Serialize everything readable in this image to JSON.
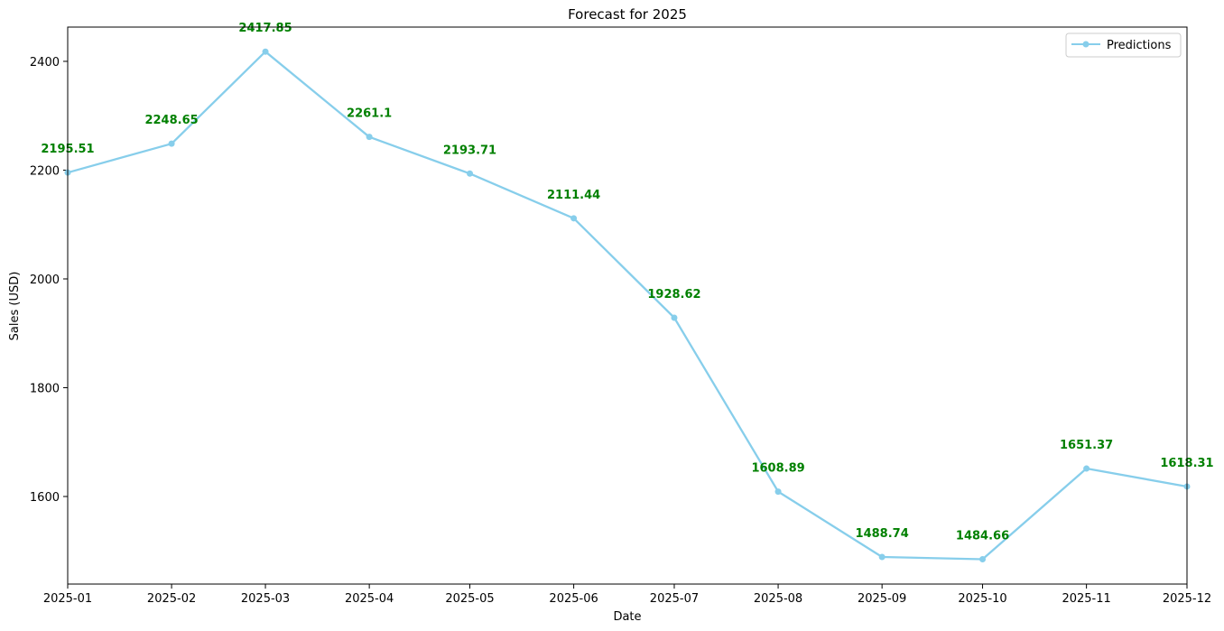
{
  "chart_data": {
    "type": "line",
    "title": "Forecast for 2025",
    "xlabel": "Date",
    "ylabel": "Sales (USD)",
    "x": [
      "2025-01",
      "2025-02",
      "2025-03",
      "2025-04",
      "2025-05",
      "2025-06",
      "2025-07",
      "2025-08",
      "2025-09",
      "2025-10",
      "2025-11",
      "2025-12"
    ],
    "x_dates": [
      "2025-01-01",
      "2025-02-01",
      "2025-03-01",
      "2025-04-01",
      "2025-05-01",
      "2025-06-01",
      "2025-07-01",
      "2025-08-01",
      "2025-09-01",
      "2025-10-01",
      "2025-11-01",
      "2025-12-01"
    ],
    "series": [
      {
        "name": "Predictions",
        "values": [
          2195.51,
          2248.65,
          2417.85,
          2261.1,
          2193.71,
          2111.44,
          1928.62,
          1608.89,
          1488.74,
          1484.66,
          1651.37,
          1618.31
        ],
        "labels": [
          "2195.51",
          "2248.65",
          "2417.85",
          "2261.1",
          "2193.71",
          "2111.44",
          "1928.62",
          "1608.89",
          "1488.74",
          "1484.66",
          "1651.37",
          "1618.31"
        ]
      }
    ],
    "ylim": [
      1439,
      2463
    ],
    "yticks": [
      "1600",
      "1800",
      "2000",
      "2200",
      "2400"
    ],
    "grid": false,
    "legend_position": "top-right",
    "colors": {
      "line": "#87ceeb",
      "label": "#008000",
      "axis": "#000000"
    }
  }
}
